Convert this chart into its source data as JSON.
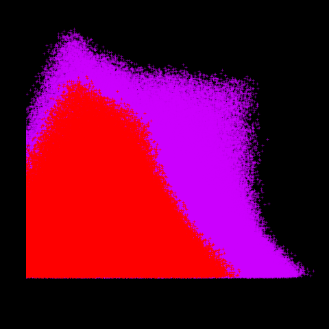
{
  "background_color": "#000000",
  "magenta": "#cc00ff",
  "red": "#ff0000",
  "figsize": [
    4.8,
    4.8
  ],
  "dpi": 100,
  "seed": 12345,
  "xlim_log": [
    0.3,
    2.85
  ],
  "ylim_log": [
    -0.3,
    3.05
  ],
  "markersize": 2.5,
  "markeredgewidth": 0.6,
  "alpha_magenta": 0.55,
  "alpha_red": 0.85
}
